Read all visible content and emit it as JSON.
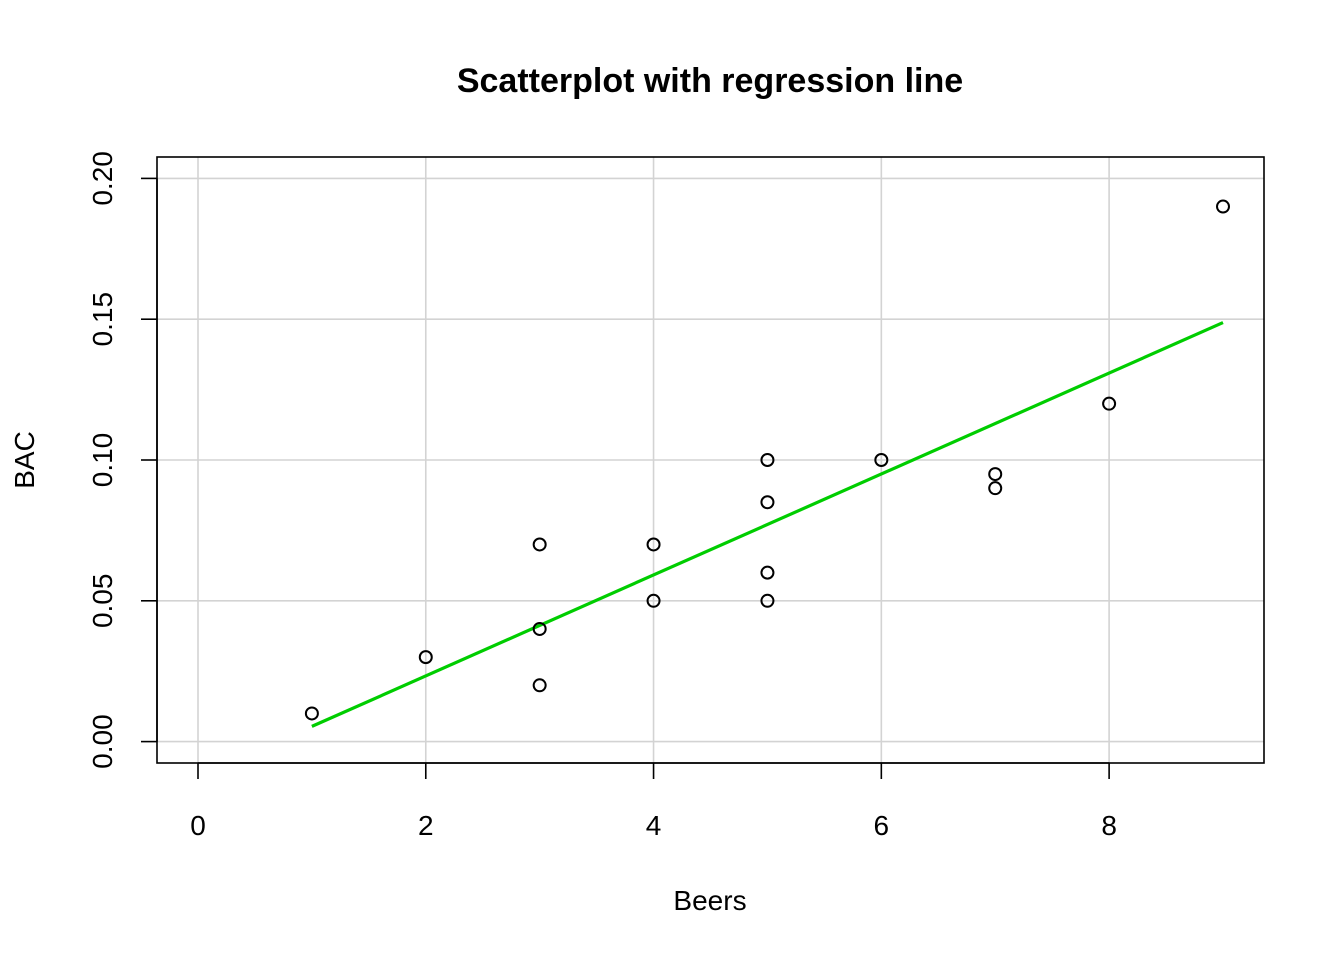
{
  "chart_data": {
    "type": "scatter",
    "title": "Scatterplot with regression line",
    "xlabel": "Beers",
    "ylabel": "BAC",
    "xlim": [
      -0.36,
      9.36
    ],
    "ylim": [
      -0.0076,
      0.2076
    ],
    "x_ticks": [
      0,
      2,
      4,
      6,
      8
    ],
    "x_tick_labels": [
      "0",
      "2",
      "4",
      "6",
      "8"
    ],
    "y_ticks": [
      0.0,
      0.05,
      0.1,
      0.15,
      0.2
    ],
    "y_tick_labels": [
      "0.00",
      "0.05",
      "0.10",
      "0.15",
      "0.20"
    ],
    "grid": true,
    "points": [
      {
        "x": 1,
        "y": 0.01
      },
      {
        "x": 2,
        "y": 0.03
      },
      {
        "x": 3,
        "y": 0.02
      },
      {
        "x": 3,
        "y": 0.04
      },
      {
        "x": 3,
        "y": 0.07
      },
      {
        "x": 4,
        "y": 0.05
      },
      {
        "x": 4,
        "y": 0.07
      },
      {
        "x": 5,
        "y": 0.05
      },
      {
        "x": 5,
        "y": 0.06
      },
      {
        "x": 5,
        "y": 0.085
      },
      {
        "x": 5,
        "y": 0.1
      },
      {
        "x": 6,
        "y": 0.1
      },
      {
        "x": 7,
        "y": 0.09
      },
      {
        "x": 7,
        "y": 0.095
      },
      {
        "x": 8,
        "y": 0.12
      },
      {
        "x": 9,
        "y": 0.19
      }
    ],
    "regression_line": {
      "x": [
        1,
        9
      ],
      "y": [
        0.0054,
        0.1488
      ],
      "color": "#00CD00"
    }
  }
}
